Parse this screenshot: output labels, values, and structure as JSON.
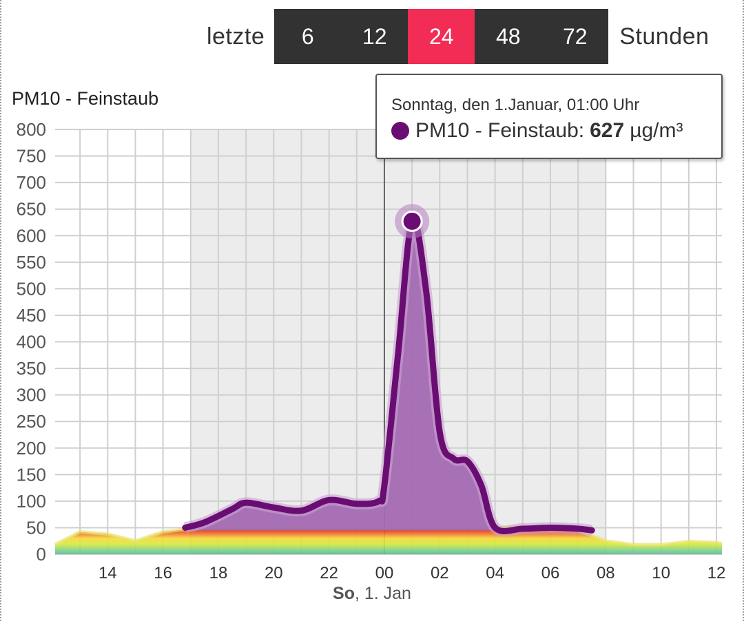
{
  "range_selector": {
    "prefix": "letzte",
    "suffix": "Stunden",
    "options": [
      "6",
      "12",
      "24",
      "48",
      "72"
    ],
    "selected": "24",
    "active_color": "#f12c55",
    "button_color": "#323232"
  },
  "tooltip": {
    "date": "Sonntag, den 1.Januar, 01:00 Uhr",
    "series": "PM10 - Feinstaub:",
    "value": "627",
    "unit": "µg/m³"
  },
  "date_caption": {
    "day": "So",
    "rest": ", 1. Jan"
  },
  "chart_data": {
    "type": "area",
    "title": "PM10 - Feinstaub",
    "ylabel": "",
    "xlabel": "",
    "ylim": [
      0,
      800
    ],
    "yticks": [
      "0",
      "50",
      "100",
      "150",
      "200",
      "250",
      "300",
      "350",
      "400",
      "450",
      "500",
      "550",
      "600",
      "650",
      "700",
      "750",
      "800"
    ],
    "xticks": [
      "14",
      "16",
      "18",
      "20",
      "22",
      "00",
      "02",
      "04",
      "06",
      "08",
      "10",
      "12"
    ],
    "xtick_hours": [
      14,
      16,
      18,
      20,
      22,
      24,
      26,
      28,
      30,
      32,
      34,
      36
    ],
    "x_range_hours": [
      12.1,
      36.2
    ],
    "night_shading_hours": [
      17,
      32
    ],
    "midnight_hour": 24,
    "grid": true,
    "series": [
      {
        "name": "PM10 - Feinstaub",
        "color": "#6a0d73",
        "fill": "#a46ab3",
        "x_hours": [
          16.8,
          17.5,
          18.5,
          19,
          20,
          21,
          22,
          23,
          23.8,
          24,
          24.5,
          25,
          25.5,
          26,
          26.5,
          27,
          27.5,
          28,
          29,
          30,
          31,
          31.5
        ],
        "values": [
          50,
          60,
          85,
          97,
          88,
          82,
          102,
          95,
          100,
          130,
          380,
          627,
          500,
          230,
          180,
          175,
          130,
          50,
          48,
          50,
          48,
          45
        ]
      }
    ],
    "low_band": {
      "x_hours": [
        12.1,
        13,
        14,
        15,
        16,
        17,
        18,
        20,
        22,
        24,
        26,
        28,
        30,
        31,
        32,
        33,
        34,
        35,
        36,
        36.2
      ],
      "values": [
        18,
        42,
        38,
        25,
        42,
        48,
        50,
        50,
        50,
        50,
        50,
        50,
        52,
        45,
        25,
        18,
        18,
        24,
        22,
        20
      ]
    },
    "highlight": {
      "x_hour": 25,
      "value": 627
    }
  }
}
